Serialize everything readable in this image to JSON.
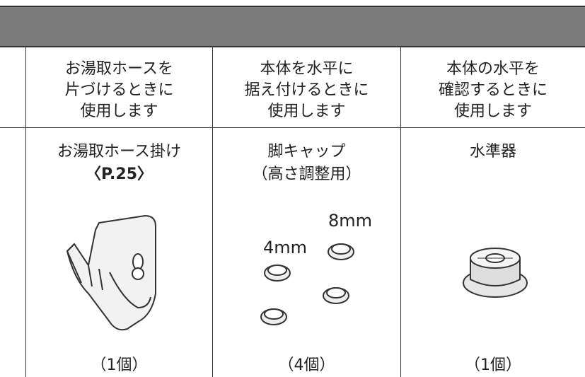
{
  "table": {
    "columns": [
      {
        "description": [
          "お湯取ホースを",
          "片づけるときに",
          "使用します"
        ],
        "name": [
          "お湯取ホース掛け",
          "〈P.25〉"
        ],
        "quantity": "（1個）"
      },
      {
        "description": [
          "本体を水平に",
          "据え付けるときに",
          "使用します"
        ],
        "name": [
          "脚キャップ",
          "（高さ調整用）"
        ],
        "labels": [
          "8mm",
          "4mm"
        ],
        "quantity": "（4個）"
      },
      {
        "description": [
          "本体の水平を",
          "確認するときに",
          "使用します"
        ],
        "name": [
          "水準器"
        ],
        "quantity": "（1個）"
      }
    ]
  }
}
